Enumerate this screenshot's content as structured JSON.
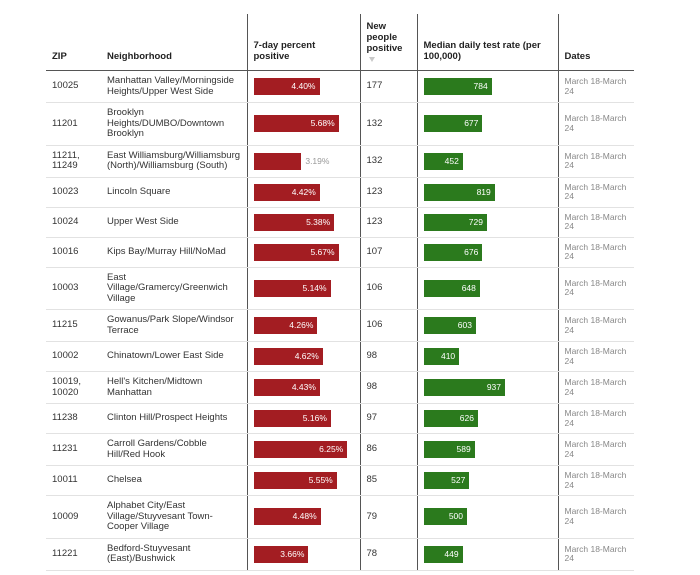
{
  "table": {
    "headers": [
      "ZIP",
      "Neighborhood",
      "7-day percent positive",
      "New people positive",
      "Median daily test rate (per 100,000)",
      "Dates"
    ],
    "rows": [
      {
        "zip": "10025",
        "neighborhood": "Manhattan Valley/Morningside Heights/Upper West Side",
        "positivity": 4.4,
        "positivity_label": "4.40%",
        "new_positive": 177,
        "test_rate": 784,
        "dates": "March 18-March 24"
      },
      {
        "zip": "11201",
        "neighborhood": "Brooklyn Heights/DUMBO/Downtown Brooklyn",
        "positivity": 5.68,
        "positivity_label": "5.68%",
        "new_positive": 132,
        "test_rate": 677,
        "dates": "March 18-March 24"
      },
      {
        "zip": "11211, 11249",
        "neighborhood": "East Williamsburg/Williamsburg (North)/Williamsburg (South)",
        "positivity": 3.19,
        "positivity_label": "3.19%",
        "new_positive": 132,
        "test_rate": 452,
        "dates": "March 18-March 24"
      },
      {
        "zip": "10023",
        "neighborhood": "Lincoln Square",
        "positivity": 4.42,
        "positivity_label": "4.42%",
        "new_positive": 123,
        "test_rate": 819,
        "dates": "March 18-March 24"
      },
      {
        "zip": "10024",
        "neighborhood": "Upper West Side",
        "positivity": 5.38,
        "positivity_label": "5.38%",
        "new_positive": 123,
        "test_rate": 729,
        "dates": "March 18-March 24"
      },
      {
        "zip": "10016",
        "neighborhood": "Kips Bay/Murray Hill/NoMad",
        "positivity": 5.67,
        "positivity_label": "5.67%",
        "new_positive": 107,
        "test_rate": 676,
        "dates": "March 18-March 24"
      },
      {
        "zip": "10003",
        "neighborhood": "East Village/Gramercy/Greenwich Village",
        "positivity": 5.14,
        "positivity_label": "5.14%",
        "new_positive": 106,
        "test_rate": 648,
        "dates": "March 18-March 24"
      },
      {
        "zip": "11215",
        "neighborhood": "Gowanus/Park Slope/Windsor Terrace",
        "positivity": 4.26,
        "positivity_label": "4.26%",
        "new_positive": 106,
        "test_rate": 603,
        "dates": "March 18-March 24"
      },
      {
        "zip": "10002",
        "neighborhood": "Chinatown/Lower East Side",
        "positivity": 4.62,
        "positivity_label": "4.62%",
        "new_positive": 98,
        "test_rate": 410,
        "dates": "March 18-March 24"
      },
      {
        "zip": "10019, 10020",
        "neighborhood": "Hell's Kitchen/Midtown Manhattan",
        "positivity": 4.43,
        "positivity_label": "4.43%",
        "new_positive": 98,
        "test_rate": 937,
        "dates": "March 18-March 24"
      },
      {
        "zip": "11238",
        "neighborhood": "Clinton Hill/Prospect Heights",
        "positivity": 5.16,
        "positivity_label": "5.16%",
        "new_positive": 97,
        "test_rate": 626,
        "dates": "March 18-March 24"
      },
      {
        "zip": "11231",
        "neighborhood": "Carroll Gardens/Cobble Hill/Red Hook",
        "positivity": 6.25,
        "positivity_label": "6.25%",
        "new_positive": 86,
        "test_rate": 589,
        "dates": "March 18-March 24"
      },
      {
        "zip": "10011",
        "neighborhood": "Chelsea",
        "positivity": 5.55,
        "positivity_label": "5.55%",
        "new_positive": 85,
        "test_rate": 527,
        "dates": "March 18-March 24"
      },
      {
        "zip": "10009",
        "neighborhood": "Alphabet City/East Village/Stuyvesant Town-Cooper Village",
        "positivity": 4.48,
        "positivity_label": "4.48%",
        "new_positive": 79,
        "test_rate": 500,
        "dates": "March 18-March 24"
      },
      {
        "zip": "11221",
        "neighborhood": "Bedford-Stuyvesant (East)/Bushwick",
        "positivity": 3.66,
        "positivity_label": "3.66%",
        "new_positive": 78,
        "test_rate": 449,
        "dates": "March 18-March 24"
      }
    ]
  }
}
